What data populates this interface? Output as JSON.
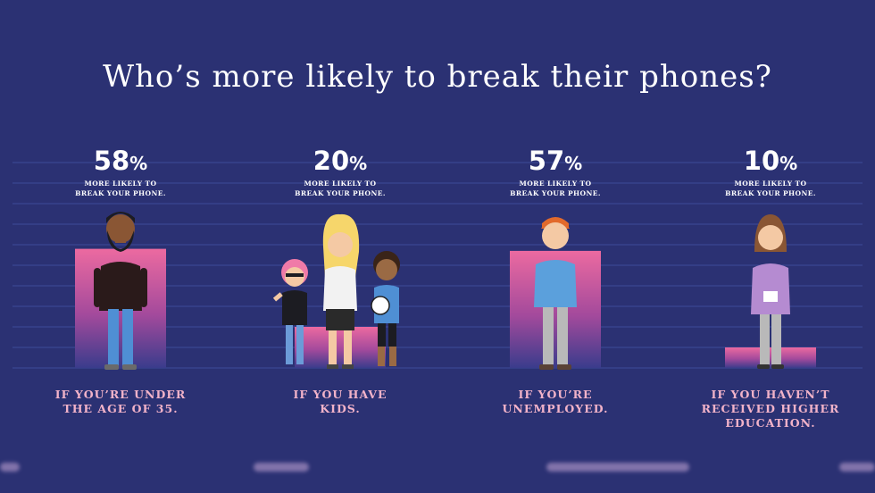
{
  "title": "Who’s more likely to break their phones?",
  "chart_data": {
    "type": "bar",
    "title": "Who’s more likely to break their phones?",
    "categories": [
      "IF YOU’RE UNDER THE AGE OF 35.",
      "IF YOU HAVE KIDS.",
      "IF YOU’RE UNEMPLOYED.",
      "IF YOU HAVEN’T RECEIVED HIGHER EDUCATION."
    ],
    "values": [
      58,
      20,
      57,
      10
    ],
    "value_labels": [
      "58",
      "20",
      "57",
      "10"
    ],
    "value_suffix": "%",
    "sublabel": "MORE LIKELY TO BREAK YOUR PHONE.",
    "ylim": [
      0,
      100
    ],
    "grid": true
  },
  "groups": [
    {
      "value": "58",
      "symbol": "%",
      "line1": "MORE LIKELY TO",
      "line2": "BREAK YOUR PHONE.",
      "cond": "IF YOU’RE UNDER\nTHE AGE OF 35."
    },
    {
      "value": "20",
      "symbol": "%",
      "line1": "MORE LIKELY TO",
      "line2": "BREAK YOUR PHONE.",
      "cond": "IF YOU HAVE\nKIDS."
    },
    {
      "value": "57",
      "symbol": "%",
      "line1": "MORE LIKELY TO",
      "line2": "BREAK YOUR PHONE.",
      "cond": "IF YOU’RE\nUNEMPLOYED."
    },
    {
      "value": "10",
      "symbol": "%",
      "line1": "MORE LIKELY TO",
      "line2": "BREAK YOUR PHONE.",
      "cond": "IF YOU HAVEN’T\nRECEIVED HIGHER\nEDUCATION."
    }
  ],
  "colors": {
    "background": "#2b3173",
    "grid": "#3e4a9a",
    "bar_top": "#ec6aa0",
    "bar_bottom": "#3a3c8c",
    "condition_text": "#f2b3c9",
    "text": "#ffffff"
  }
}
